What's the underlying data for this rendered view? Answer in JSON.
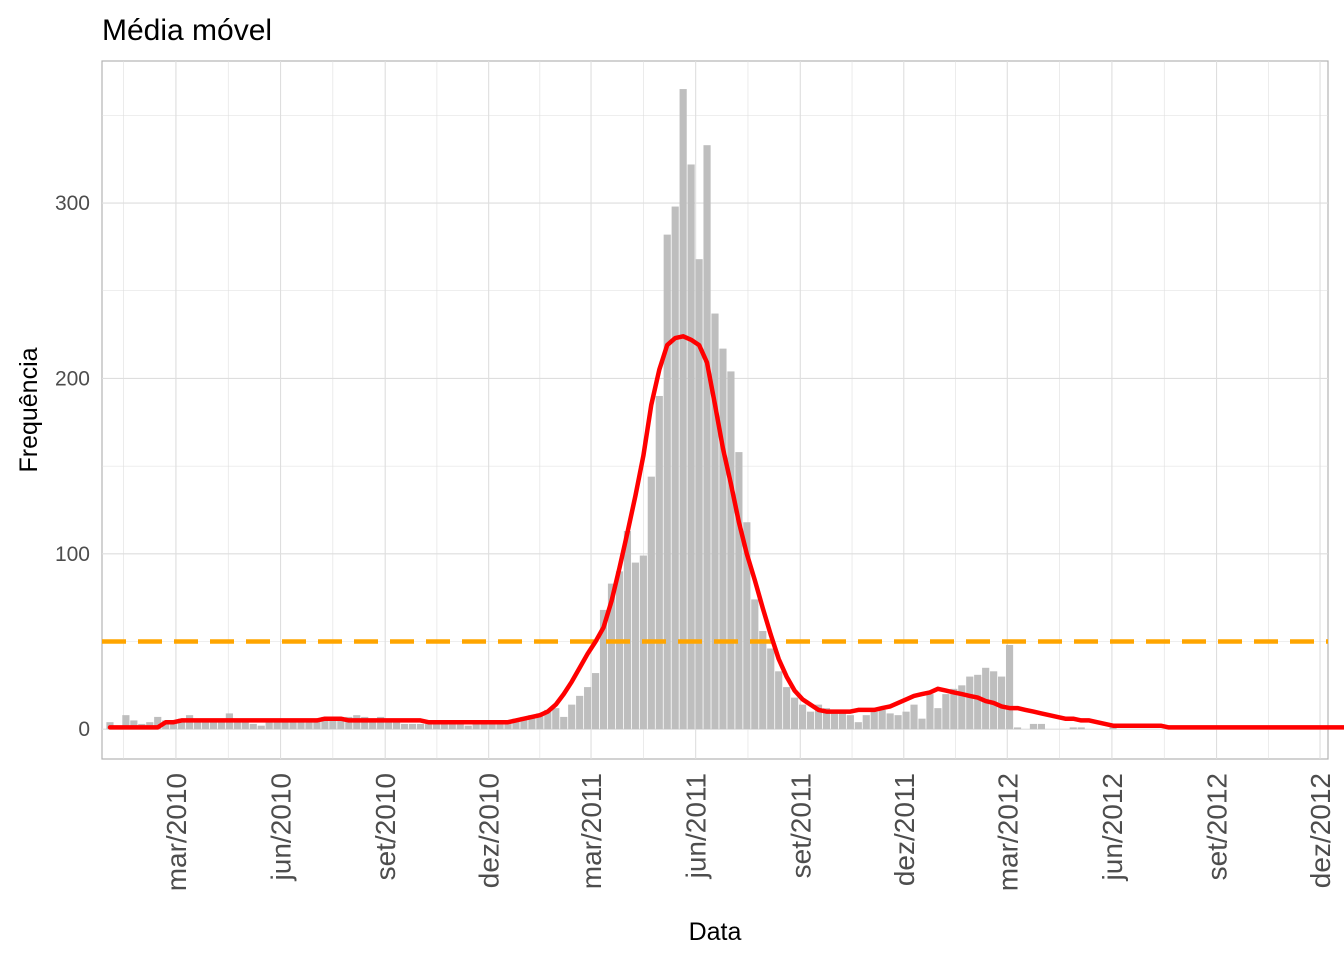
{
  "chart_data": {
    "type": "bar",
    "title": "Média móvel",
    "xlabel": "Data",
    "ylabel": "Frequência",
    "x_unit": "week",
    "x_start": "2010-01-02",
    "ylim": [
      -17,
      381
    ],
    "yticks": [
      0,
      100,
      200,
      300
    ],
    "xlim": [
      "2009-12-26",
      "2012-12-08"
    ],
    "xticks": [
      {
        "date": "2010-03-01",
        "label": "mar/2010"
      },
      {
        "date": "2010-06-01",
        "label": "jun/2010"
      },
      {
        "date": "2010-09-01",
        "label": "set/2010"
      },
      {
        "date": "2010-12-01",
        "label": "dez/2010"
      },
      {
        "date": "2011-03-01",
        "label": "mar/2011"
      },
      {
        "date": "2011-06-01",
        "label": "jun/2011"
      },
      {
        "date": "2011-09-01",
        "label": "set/2011"
      },
      {
        "date": "2011-12-01",
        "label": "dez/2011"
      },
      {
        "date": "2012-03-01",
        "label": "mar/2012"
      },
      {
        "date": "2012-06-01",
        "label": "jun/2012"
      },
      {
        "date": "2012-09-01",
        "label": "set/2012"
      },
      {
        "date": "2012-12-01",
        "label": "dez/2012"
      }
    ],
    "grid": true,
    "colors": {
      "bars": "#bebebe",
      "moving_average": "#ff0000",
      "threshold": "#ffa500",
      "grid": "#dedede",
      "border": "#b3b3b3"
    },
    "threshold": 50,
    "series": [
      {
        "values": [
          4,
          2,
          8,
          5,
          3,
          4,
          7,
          5,
          5,
          6,
          8,
          6,
          5,
          5,
          6,
          9,
          5,
          4,
          3,
          2,
          4,
          5,
          6,
          5,
          6,
          5,
          6,
          7,
          7,
          7,
          7,
          8,
          7,
          5,
          7,
          5,
          4,
          3,
          3,
          3,
          3,
          3,
          3,
          3,
          3,
          2,
          3,
          3,
          5,
          4,
          5,
          6,
          7,
          8,
          9,
          11,
          12,
          7,
          14,
          19,
          24,
          32,
          68,
          83,
          90,
          113,
          95,
          99,
          144,
          190,
          282,
          298,
          365,
          322,
          268,
          333,
          237,
          217,
          204,
          158,
          118,
          74,
          56,
          46,
          33,
          24,
          18,
          14,
          10,
          14,
          12,
          10,
          10,
          8,
          4,
          8,
          10,
          11,
          9,
          8,
          10,
          14,
          6,
          20,
          12,
          20,
          23,
          25,
          30,
          31,
          35,
          33,
          30,
          48,
          1,
          0,
          3,
          3,
          0,
          0,
          0,
          1,
          1,
          0,
          0,
          0,
          1,
          0,
          0,
          0,
          0,
          0,
          0,
          0,
          0,
          0,
          0,
          0,
          0,
          0,
          0,
          0,
          0,
          0,
          0,
          0,
          0,
          0,
          0,
          0,
          0,
          0,
          0,
          0,
          0,
          0,
          0,
          0,
          0,
          0,
          0,
          0,
          0
        ]
      },
      {
        "name_hidden": true,
        "values": [
          1,
          1,
          1,
          1,
          1,
          1,
          1,
          4,
          4,
          5,
          5,
          5,
          5,
          5,
          5,
          5,
          5,
          5,
          5,
          5,
          5,
          5,
          5,
          5,
          5,
          5,
          5,
          6,
          6,
          6,
          5,
          5,
          5,
          5,
          5,
          5,
          5,
          5,
          5,
          5,
          4,
          4,
          4,
          4,
          4,
          4,
          4,
          4,
          4,
          4,
          4,
          5,
          6,
          7,
          8,
          10,
          14,
          20,
          27,
          35,
          43,
          50,
          58,
          73,
          92,
          112,
          133,
          156,
          185,
          205,
          219,
          223,
          224,
          222,
          219,
          209,
          185,
          160,
          140,
          118,
          100,
          85,
          69,
          54,
          40,
          30,
          22,
          17,
          14,
          11,
          10,
          10,
          10,
          10,
          11,
          11,
          11,
          12,
          13,
          15,
          17,
          19,
          20,
          21,
          23,
          22,
          21,
          20,
          19,
          18,
          16,
          15,
          13,
          12,
          12,
          11,
          10,
          9,
          8,
          7,
          6,
          6,
          5,
          5,
          4,
          3,
          2,
          2,
          2,
          2,
          2,
          2,
          2,
          1,
          1,
          1,
          1,
          1,
          1,
          1,
          1,
          1,
          1,
          1,
          1,
          1,
          1,
          1,
          1,
          1,
          1,
          1,
          1,
          1,
          1,
          1,
          1,
          1,
          1,
          1,
          1,
          1
        ]
      }
    ]
  }
}
